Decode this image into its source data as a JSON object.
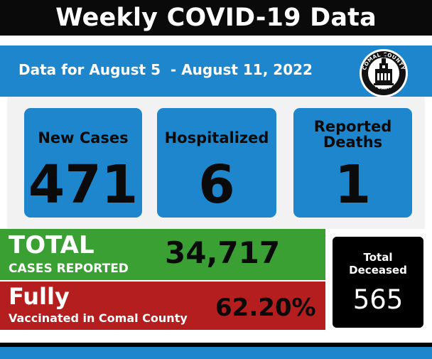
{
  "title": "Weekly COVID-19 Data",
  "date_range": "Data for August 5  - August 11, 2022",
  "seal": {
    "top_text": "COMAL COUNTY",
    "bottom_text": "TEXAS",
    "icon": "county-seal-icon"
  },
  "cards": [
    {
      "label_line1": "New Cases",
      "label_line2": "",
      "value": "471"
    },
    {
      "label_line1": "Hospitalized",
      "label_line2": "",
      "value": "6"
    },
    {
      "label_line1": "Reported",
      "label_line2": "Deaths",
      "value": "1"
    }
  ],
  "total_cases": {
    "heading": "TOTAL",
    "subheading": "CASES REPORTED",
    "value": "34,717"
  },
  "vaccinated": {
    "heading": "Fully",
    "subheading": "Vaccinated in Comal County",
    "value": "62.20%"
  },
  "deceased": {
    "label_line1": "Total",
    "label_line2": "Deceased",
    "value": "565"
  },
  "colors": {
    "blue": "#1d86cc",
    "green": "#3aa033",
    "red": "#b51e1e",
    "black": "#0a0a0a"
  }
}
